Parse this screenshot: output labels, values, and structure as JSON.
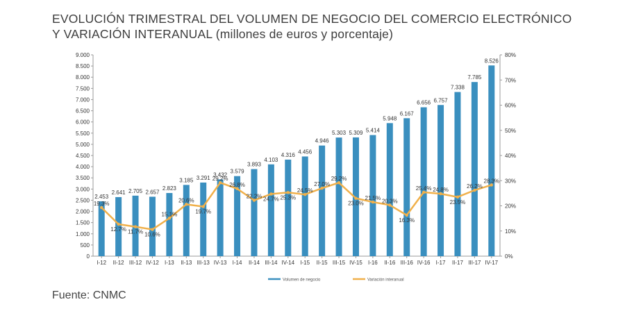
{
  "header": {
    "title_line1": "EVOLUCIÓN TRIMESTRAL DEL VOLUMEN DE NEGOCIO DEL COMERCIO ELECTRÓNICO",
    "title_line2": "Y VARIACIÓN INTERANUAL (millones de euros y porcentaje)"
  },
  "footer": {
    "source": "Fuente: CNMC"
  },
  "chart_data": {
    "type": "bar",
    "title": "EVOLUCIÓN TRIMESTRAL DEL VOLUMEN DE NEGOCIO DEL COMERCIO ELECTRÓNICO Y VARIACIÓN INTERANUAL (millones de euros y porcentaje)",
    "categories": [
      "I-12",
      "II-12",
      "III-12",
      "IV-12",
      "I-13",
      "II-13",
      "III-13",
      "IV-13",
      "I-14",
      "II-14",
      "III-14",
      "IV-14",
      "I-15",
      "II-15",
      "III-15",
      "IV-15",
      "I-16",
      "II-16",
      "III-16",
      "IV-16",
      "I-17",
      "II-17",
      "III-17",
      "IV-17"
    ],
    "series": [
      {
        "name": "Volumen de negocio",
        "type": "bar",
        "axis": "left",
        "color": "#3a8fbf",
        "values": [
          2453,
          2641,
          2705,
          2657,
          2823,
          3185,
          3291,
          3432,
          3579,
          3893,
          4103,
          4316,
          4456,
          4946,
          5303,
          5309,
          5414,
          5948,
          6167,
          6656,
          6757,
          7338,
          7785,
          8526
        ],
        "labels": [
          "2.453",
          "2.641",
          "2.705",
          "2.657",
          "2.823",
          "3.185",
          "3.291",
          "3.432",
          "3.579",
          "3.893",
          "4.103",
          "4.316",
          "4.456",
          "4.946",
          "5.303",
          "5.309",
          "5.414",
          "5.948",
          "6.167",
          "6.656",
          "6.757",
          "7.338",
          "7.785",
          "8.526"
        ]
      },
      {
        "name": "Variación interanual",
        "type": "line",
        "axis": "right",
        "color": "#f0b04a",
        "values": [
          19.3,
          12.7,
          11.7,
          10.6,
          15.1,
          20.6,
          19.7,
          29.2,
          26.8,
          22.2,
          24.7,
          25.3,
          24.5,
          27.0,
          29.2,
          23.0,
          21.5,
          20.3,
          16.3,
          25.4,
          24.8,
          23.5,
          26.2,
          28.3
        ],
        "labels": [
          "19.3%",
          "12.7%",
          "11.7%",
          "10.6%",
          "15.1%",
          "20.6%",
          "19.7%",
          "29.2%",
          "26.8%",
          "22.2%",
          "24.7%",
          "25.3%",
          "24.5%",
          "27.0%",
          "29.2%",
          "23.0%",
          "21.5%",
          "20.3%",
          "16.3%",
          "25.4%",
          "24.8%",
          "23.5%",
          "26.2%",
          "28.3%"
        ]
      }
    ],
    "y_left": {
      "range": [
        0,
        9000
      ],
      "ticks": [
        0,
        500,
        1000,
        1500,
        2000,
        2500,
        3000,
        3500,
        4000,
        4500,
        5000,
        5500,
        6000,
        6500,
        7000,
        7500,
        8000,
        8500,
        9000
      ],
      "tick_labels": [
        "0",
        "500",
        "1.000",
        "1.500",
        "2.000",
        "2.500",
        "3.000",
        "3.500",
        "4.000",
        "4.500",
        "5.000",
        "5.500",
        "6.000",
        "6.500",
        "7.000",
        "7.500",
        "8.000",
        "8.500",
        "9.000"
      ]
    },
    "y_right": {
      "range": [
        0,
        80
      ],
      "ticks": [
        0,
        10,
        20,
        30,
        40,
        50,
        60,
        70,
        80
      ],
      "tick_labels": [
        "0%",
        "10%",
        "20%",
        "30%",
        "40%",
        "50%",
        "60%",
        "70%",
        "80%"
      ]
    },
    "grid": false,
    "legend": {
      "position": "bottom",
      "entries": [
        "Volumen de negocio",
        "Variación interanual"
      ]
    }
  }
}
